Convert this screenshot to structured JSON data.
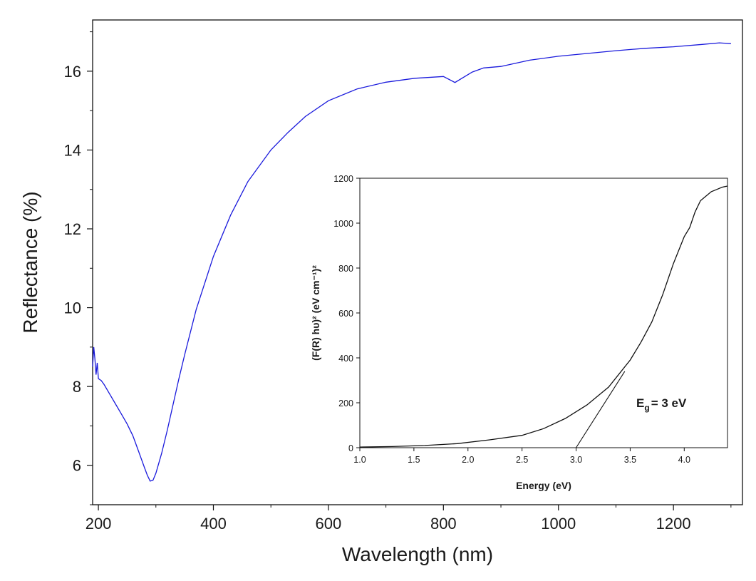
{
  "chart_data": [
    {
      "type": "line",
      "xlabel": "Wavelength (nm)",
      "ylabel": "Reflectance (%)",
      "xlim": [
        190,
        1320
      ],
      "ylim": [
        5,
        17.3
      ],
      "xticks": [
        200,
        400,
        600,
        800,
        1000,
        1200
      ],
      "yticks": [
        6,
        8,
        10,
        12,
        14,
        16
      ],
      "grid": false,
      "color": "#1a1adc",
      "series": [
        {
          "x": [
            190,
            192,
            194,
            196,
            198,
            200,
            205,
            210,
            220,
            230,
            240,
            250,
            260,
            270,
            280,
            285,
            290,
            295,
            300,
            310,
            320,
            330,
            340,
            350,
            370,
            400,
            430,
            460,
            500,
            530,
            560,
            600,
            650,
            700,
            750,
            800,
            820,
            850,
            870,
            900,
            950,
            1000,
            1050,
            1100,
            1150,
            1200,
            1250,
            1280,
            1300
          ],
          "y": [
            8.5,
            9.0,
            8.7,
            8.3,
            8.6,
            8.2,
            8.15,
            8.05,
            7.8,
            7.55,
            7.3,
            7.05,
            6.75,
            6.35,
            5.95,
            5.75,
            5.6,
            5.62,
            5.8,
            6.3,
            6.9,
            7.55,
            8.2,
            8.8,
            9.95,
            11.3,
            12.35,
            13.2,
            14.0,
            14.45,
            14.85,
            15.25,
            15.55,
            15.72,
            15.82,
            15.9,
            15.75,
            15.98,
            16.05,
            16.12,
            16.28,
            16.38,
            16.45,
            16.52,
            16.58,
            16.62,
            16.68,
            16.72,
            16.7
          ]
        }
      ]
    },
    {
      "type": "line",
      "xlabel": "Energy (eV)",
      "ylabel": "(F(R) hυ)² (eV cm⁻¹)²",
      "xlim": [
        1.0,
        4.4
      ],
      "ylim": [
        0,
        1200
      ],
      "xticks": [
        1.0,
        1.5,
        2.0,
        2.5,
        3.0,
        3.5,
        4.0
      ],
      "xticklabels": [
        "1.0",
        "1.5",
        "2.0",
        "2.5",
        "3.0",
        "3.5",
        "4.0"
      ],
      "yticks": [
        0,
        200,
        400,
        600,
        800,
        1000,
        1200
      ],
      "grid": false,
      "color": "#111111",
      "series": [
        {
          "x": [
            1.0,
            1.3,
            1.6,
            1.9,
            2.2,
            2.5,
            2.7,
            2.9,
            3.1,
            3.3,
            3.5,
            3.6,
            3.7,
            3.8,
            3.9,
            4.0,
            4.05,
            4.1,
            4.15,
            4.2,
            4.25,
            4.3,
            4.35,
            4.4
          ],
          "y": [
            3,
            5,
            10,
            18,
            35,
            55,
            85,
            130,
            190,
            270,
            390,
            470,
            560,
            680,
            820,
            940,
            980,
            1050,
            1100,
            1120,
            1140,
            1150,
            1160,
            1165
          ]
        },
        {
          "x": [
            3.0,
            3.45
          ],
          "y": [
            0,
            340
          ]
        }
      ],
      "annotations": [
        {
          "text": "E",
          "subscript": "g",
          "suffix": "= 3 eV"
        }
      ]
    }
  ]
}
